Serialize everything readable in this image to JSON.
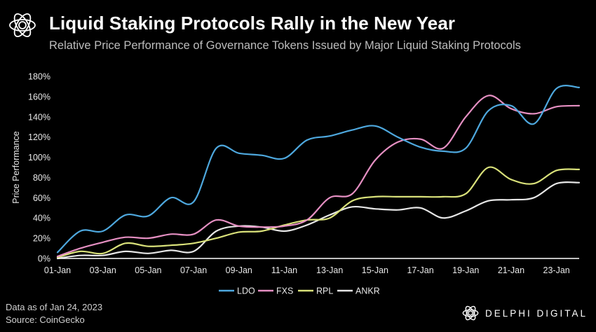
{
  "header": {
    "title": "Liquid Staking Protocols Rally in the New Year",
    "subtitle": "Relative Price Performance of Governance Tokens Issued by Major Liquid Staking Protocols"
  },
  "footer": {
    "data_note": "Data as of Jan 24, 2023",
    "source": "Source: CoinGecko",
    "brand": "DELPHI DIGITAL",
    "brand_icon": "delphi-logo-icon"
  },
  "colors": {
    "LDO": "#4ea8de",
    "FXS": "#e58fc2",
    "RPL": "#d9e17a",
    "ANKR": "#e6e6e6",
    "axis": "#ffffff"
  },
  "chart_data": {
    "type": "line",
    "title": "Liquid Staking Protocols Rally in the New Year",
    "subtitle": "Relative Price Performance of Governance Tokens Issued by Major Liquid Staking Protocols",
    "xlabel": "",
    "ylabel": "Price Performance",
    "x_tick_labels": [
      "01-Jan",
      "03-Jan",
      "05-Jan",
      "07-Jan",
      "09-Jan",
      "11-Jan",
      "13-Jan",
      "15-Jan",
      "17-Jan",
      "19-Jan",
      "21-Jan",
      "23-Jan"
    ],
    "y_tick_labels": [
      "0%",
      "20%",
      "40%",
      "60%",
      "80%",
      "100%",
      "120%",
      "140%",
      "160%",
      "180%"
    ],
    "ylim": [
      0,
      180
    ],
    "xlim": [
      "2023-01-01",
      "2023-01-24"
    ],
    "grid": false,
    "legend_position": "bottom",
    "series": [
      {
        "name": "LDO",
        "x": [
          "2023-01-01",
          "2023-01-02",
          "2023-01-03",
          "2023-01-04",
          "2023-01-05",
          "2023-01-06",
          "2023-01-07",
          "2023-01-08",
          "2023-01-09",
          "2023-01-10",
          "2023-01-11",
          "2023-01-12",
          "2023-01-13",
          "2023-01-14",
          "2023-01-15",
          "2023-01-16",
          "2023-01-17",
          "2023-01-18",
          "2023-01-19",
          "2023-01-20",
          "2023-01-21",
          "2023-01-22",
          "2023-01-23",
          "2023-01-24"
        ],
        "values": [
          6,
          27,
          27,
          43,
          42,
          60,
          56,
          109,
          104,
          102,
          99,
          117,
          121,
          127,
          131,
          120,
          110,
          106,
          109,
          146,
          151,
          133,
          168,
          169
        ]
      },
      {
        "name": "FXS",
        "x": [
          "2023-01-01",
          "2023-01-02",
          "2023-01-03",
          "2023-01-04",
          "2023-01-05",
          "2023-01-06",
          "2023-01-07",
          "2023-01-08",
          "2023-01-09",
          "2023-01-10",
          "2023-01-11",
          "2023-01-12",
          "2023-01-13",
          "2023-01-14",
          "2023-01-15",
          "2023-01-16",
          "2023-01-17",
          "2023-01-18",
          "2023-01-19",
          "2023-01-20",
          "2023-01-21",
          "2023-01-22",
          "2023-01-23",
          "2023-01-24"
        ],
        "values": [
          2,
          10,
          16,
          21,
          20,
          24,
          24,
          38,
          32,
          31,
          32,
          38,
          60,
          64,
          97,
          115,
          118,
          109,
          140,
          161,
          148,
          143,
          150,
          151
        ]
      },
      {
        "name": "RPL",
        "x": [
          "2023-01-01",
          "2023-01-02",
          "2023-01-03",
          "2023-01-04",
          "2023-01-05",
          "2023-01-06",
          "2023-01-07",
          "2023-01-08",
          "2023-01-09",
          "2023-01-10",
          "2023-01-11",
          "2023-01-12",
          "2023-01-13",
          "2023-01-14",
          "2023-01-15",
          "2023-01-16",
          "2023-01-17",
          "2023-01-18",
          "2023-01-19",
          "2023-01-20",
          "2023-01-21",
          "2023-01-22",
          "2023-01-23",
          "2023-01-24"
        ],
        "values": [
          1,
          7,
          5,
          15,
          12,
          13,
          15,
          20,
          26,
          27,
          33,
          38,
          40,
          57,
          61,
          61,
          61,
          61,
          64,
          90,
          78,
          74,
          87,
          88
        ]
      },
      {
        "name": "ANKR",
        "x": [
          "2023-01-01",
          "2023-01-02",
          "2023-01-03",
          "2023-01-04",
          "2023-01-05",
          "2023-01-06",
          "2023-01-07",
          "2023-01-08",
          "2023-01-09",
          "2023-01-10",
          "2023-01-11",
          "2023-01-12",
          "2023-01-13",
          "2023-01-14",
          "2023-01-15",
          "2023-01-16",
          "2023-01-17",
          "2023-01-18",
          "2023-01-19",
          "2023-01-20",
          "2023-01-21",
          "2023-01-22",
          "2023-01-23",
          "2023-01-24"
        ],
        "values": [
          0,
          3,
          3,
          7,
          5,
          8,
          7,
          27,
          32,
          31,
          27,
          33,
          43,
          51,
          49,
          48,
          50,
          40,
          47,
          57,
          58,
          60,
          74,
          75
        ]
      }
    ]
  }
}
